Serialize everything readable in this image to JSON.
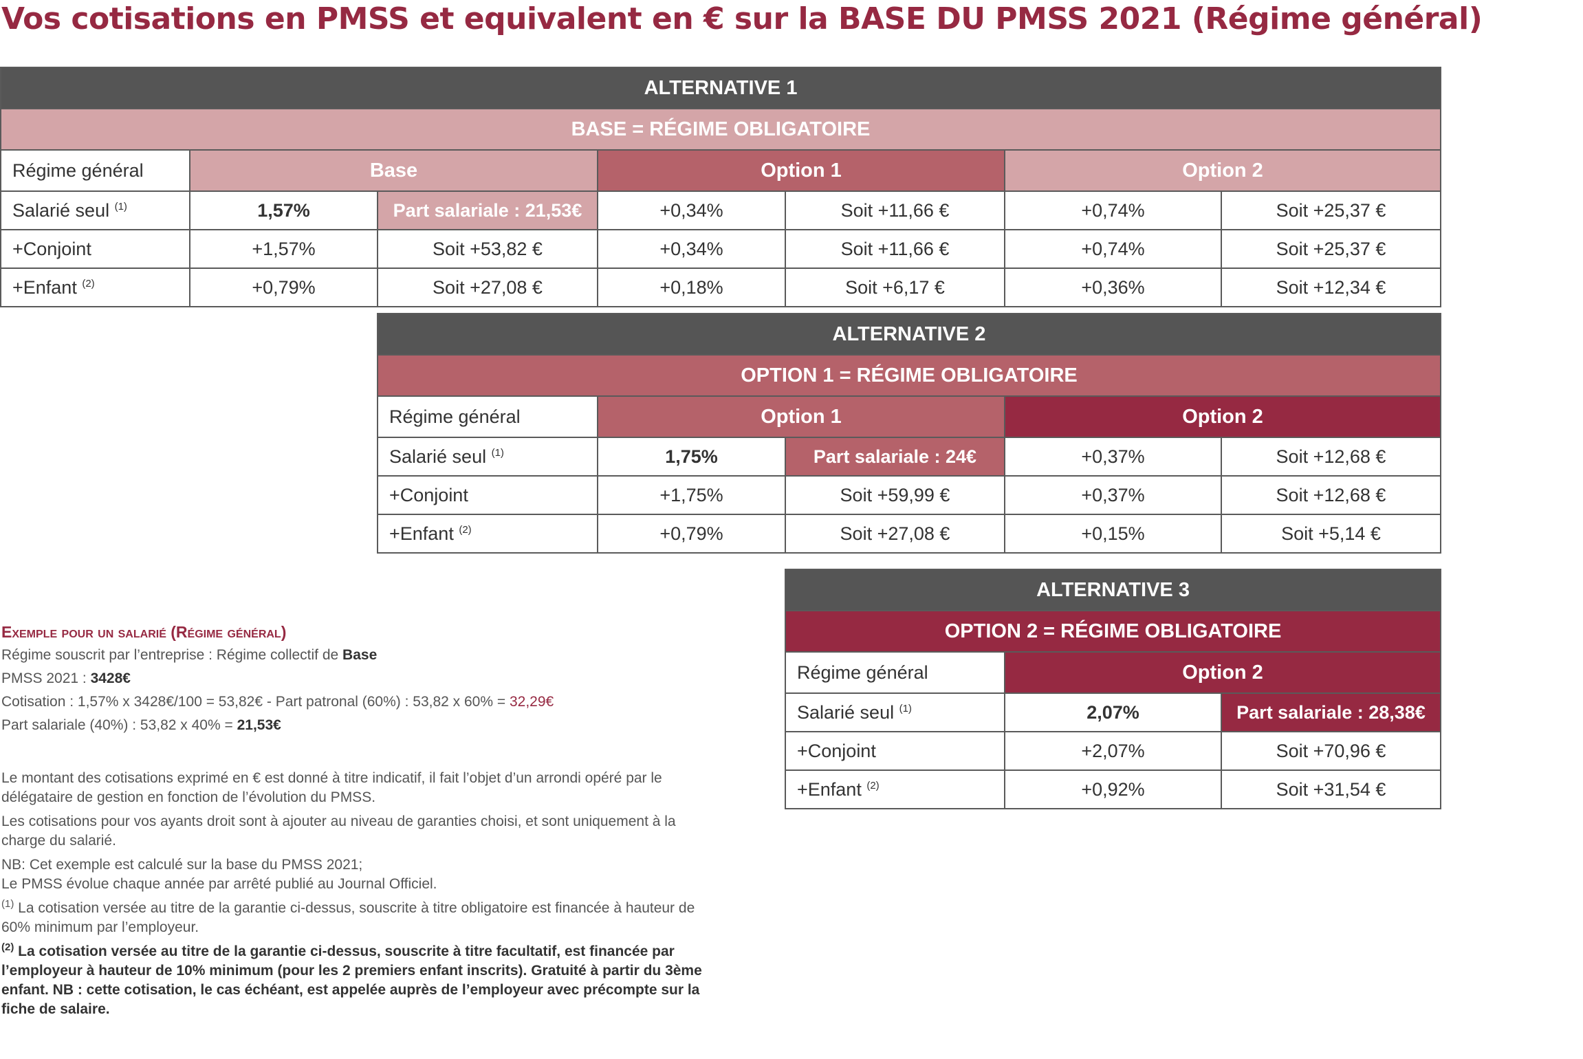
{
  "title": "Vos cotisations en PMSS et equivalent en € sur la BASE DU PMSS 2021 (Régime général)",
  "alt1": {
    "header": "ALTERNATIVE 1",
    "subheader": "BASE = RÉGIME OBLIGATOIRE",
    "row_label_header": "Régime général",
    "col_base": "Base",
    "col_option1": "Option 1",
    "col_option2": "Option 2",
    "rows": [
      {
        "label": "Salarié seul",
        "note": "(1)",
        "base_pct": "1,57%",
        "base_eur": "Part salariale :  21,53€",
        "opt1_pct": "+0,34%",
        "opt1_eur": "Soit +11,66 €",
        "opt2_pct": "+0,74%",
        "opt2_eur": "Soit +25,37 €"
      },
      {
        "label": "+Conjoint",
        "note": "",
        "base_pct": "+1,57%",
        "base_eur": "Soit +53,82 €",
        "opt1_pct": "+0,34%",
        "opt1_eur": "Soit +11,66 €",
        "opt2_pct": "+0,74%",
        "opt2_eur": "Soit +25,37 €"
      },
      {
        "label": "+Enfant",
        "note": "(2)",
        "base_pct": "+0,79%",
        "base_eur": "Soit +27,08 €",
        "opt1_pct": "+0,18%",
        "opt1_eur": "Soit +6,17 €",
        "opt2_pct": "+0,36%",
        "opt2_eur": "Soit +12,34 €"
      }
    ]
  },
  "alt2": {
    "header": "ALTERNATIVE 2",
    "subheader": "OPTION 1 = RÉGIME OBLIGATOIRE",
    "row_label_header": "Régime général",
    "col_option1": "Option 1",
    "col_option2": "Option 2",
    "rows": [
      {
        "label": "Salarié seul",
        "note": "(1)",
        "opt1_pct": "1,75%",
        "opt1_eur": "Part salariale : 24€",
        "opt2_pct": "+0,37%",
        "opt2_eur": "Soit +12,68 €"
      },
      {
        "label": "+Conjoint",
        "note": "",
        "opt1_pct": "+1,75%",
        "opt1_eur": "Soit +59,99 €",
        "opt2_pct": "+0,37%",
        "opt2_eur": "Soit +12,68 €"
      },
      {
        "label": "+Enfant",
        "note": "(2)",
        "opt1_pct": "+0,79%",
        "opt1_eur": "Soit +27,08 €",
        "opt2_pct": "+0,15%",
        "opt2_eur": "Soit +5,14 €"
      }
    ]
  },
  "alt3": {
    "header": "ALTERNATIVE 3",
    "subheader": "OPTION 2 = RÉGIME OBLIGATOIRE",
    "row_label_header": "Régime général",
    "col_option2": "Option 2",
    "rows": [
      {
        "label": "Salarié seul",
        "note": "(1)",
        "opt2_pct": "2,07%",
        "opt2_eur": "Part salariale : 28,38€"
      },
      {
        "label": "+Conjoint",
        "note": "",
        "opt2_pct": "+2,07%",
        "opt2_eur": "Soit +70,96 €"
      },
      {
        "label": "+Enfant",
        "note": "(2)",
        "opt2_pct": "+0,92%",
        "opt2_eur": "Soit +31,54 €"
      }
    ]
  },
  "example": {
    "title": "Exemple pour un salarié (Régime général)",
    "line1_text": "Régime souscrit par l’entreprise : Régime collectif de ",
    "line1_bold": "Base",
    "line2_text": "PMSS 2021 : ",
    "line2_bold": "3428€",
    "line3_text": "Cotisation : 1,57% x 3428€/100 = 53,82€ - Part patronal (60%) : 53,82 x 60% = ",
    "line3_red": "32,29€",
    "line4_text": "Part salariale (40%) : 53,82 x 40% = ",
    "line4_red": "21,53€"
  },
  "notes": {
    "p1": "Le montant des cotisations exprimé en € est donné à titre indicatif, il fait l’objet d’un arrondi opéré par le délégataire de gestion en fonction de l’évolution du PMSS.",
    "p2": "Les cotisations pour vos ayants droit sont à ajouter au niveau de garanties choisi, et sont uniquement à la charge du salarié.",
    "p3a": "NB: Cet exemple est calculé sur la base du PMSS 2021;",
    "p3b": "Le PMSS évolue chaque année par arrêté publié au Journal Officiel.",
    "n1_mark": "(1)",
    "n1_text": " La cotisation versée au titre de la garantie ci-dessus, souscrite à titre obligatoire est financée à hauteur de 60% minimum par l’employeur.",
    "n2_mark": "(2)",
    "n2_text": " La cotisation versée au titre de la garantie ci-dessus, souscrite à titre facultatif, est financée par l’employeur à hauteur de 10% minimum (pour les 2 premiers enfant inscrits). Gratuité à partir du 3ème enfant. NB : cette cotisation, le cas échéant, est appelée auprès de l’employeur avec précompte sur la fiche de salaire."
  },
  "colors": {
    "dark": "#555555",
    "pink": "#d4a5a8",
    "rose": "#b5626a",
    "wine": "#962942"
  }
}
